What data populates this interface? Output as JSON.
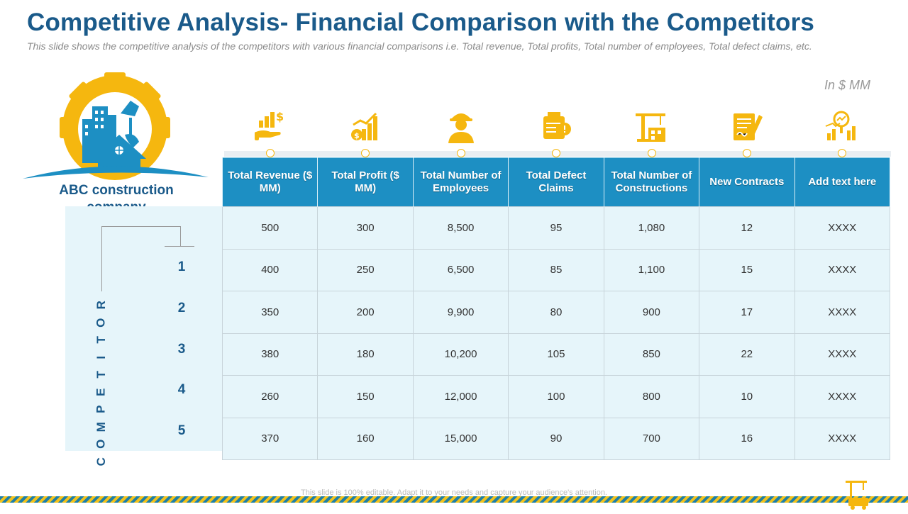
{
  "title": "Competitive Analysis- Financial Comparison with the Competitors",
  "subtitle": "This slide shows the competitive analysis of the competitors with  various financial comparisons i.e. Total revenue, Total profits, Total number of employees, Total defect claims, etc.",
  "unit_note": "In $ MM",
  "company": "ABC construction company",
  "competitor_label": "COMPETITOR",
  "competitors": [
    "1",
    "2",
    "3",
    "4",
    "5"
  ],
  "icons": [
    "money-hand-icon",
    "profit-chart-icon",
    "worker-icon",
    "defect-claims-icon",
    "construction-crane-icon",
    "contract-document-icon",
    "analytics-magnifier-icon"
  ],
  "table": {
    "headers": [
      "Total Revenue ($ MM)",
      "Total Profit ($ MM)",
      "Total Number of Employees",
      "Total Defect Claims",
      "Total Number of Constructions",
      "New Contracts",
      "Add text here"
    ],
    "rows": [
      [
        "500",
        "300",
        "8,500",
        "95",
        "1,080",
        "12",
        "XXXX"
      ],
      [
        "400",
        "250",
        "6,500",
        "85",
        "1,100",
        "15",
        "XXXX"
      ],
      [
        "350",
        "200",
        "9,900",
        "80",
        "900",
        "17",
        "XXXX"
      ],
      [
        "380",
        "180",
        "10,200",
        "105",
        "850",
        "22",
        "XXXX"
      ],
      [
        "260",
        "150",
        "12,000",
        "100",
        "800",
        "10",
        "XXXX"
      ],
      [
        "370",
        "160",
        "15,000",
        "90",
        "700",
        "16",
        "XXXX"
      ]
    ]
  },
  "footer": "This slide is 100% editable. Adapt it to your needs and capture your audience's attention.",
  "colors": {
    "title": "#1a5a8a",
    "header_bg": "#1d8fc3",
    "cell_bg": "#e6f5fa",
    "accent": "#f5b70f"
  }
}
